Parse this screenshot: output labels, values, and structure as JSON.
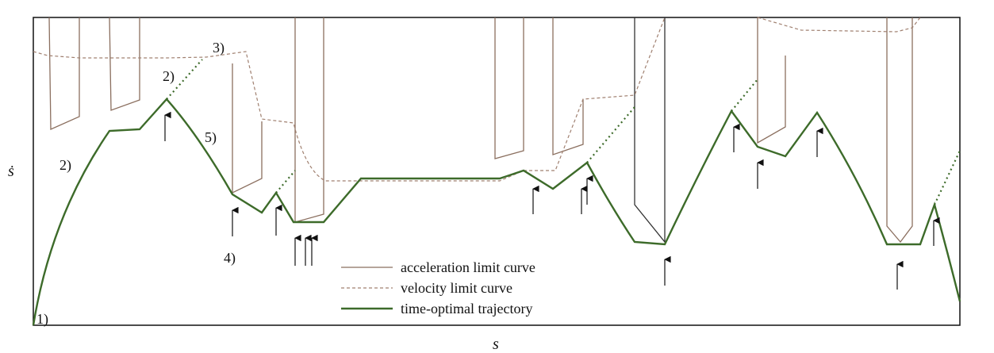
{
  "axes": {
    "x_label": "s",
    "y_label": "ṡ"
  },
  "annotations": [
    "1)",
    "2)",
    "2)",
    "3)",
    "4)",
    "5)"
  ],
  "legend": [
    "acceleration limit curve",
    "velocity limit curve",
    "time-optimal trajectory"
  ]
}
